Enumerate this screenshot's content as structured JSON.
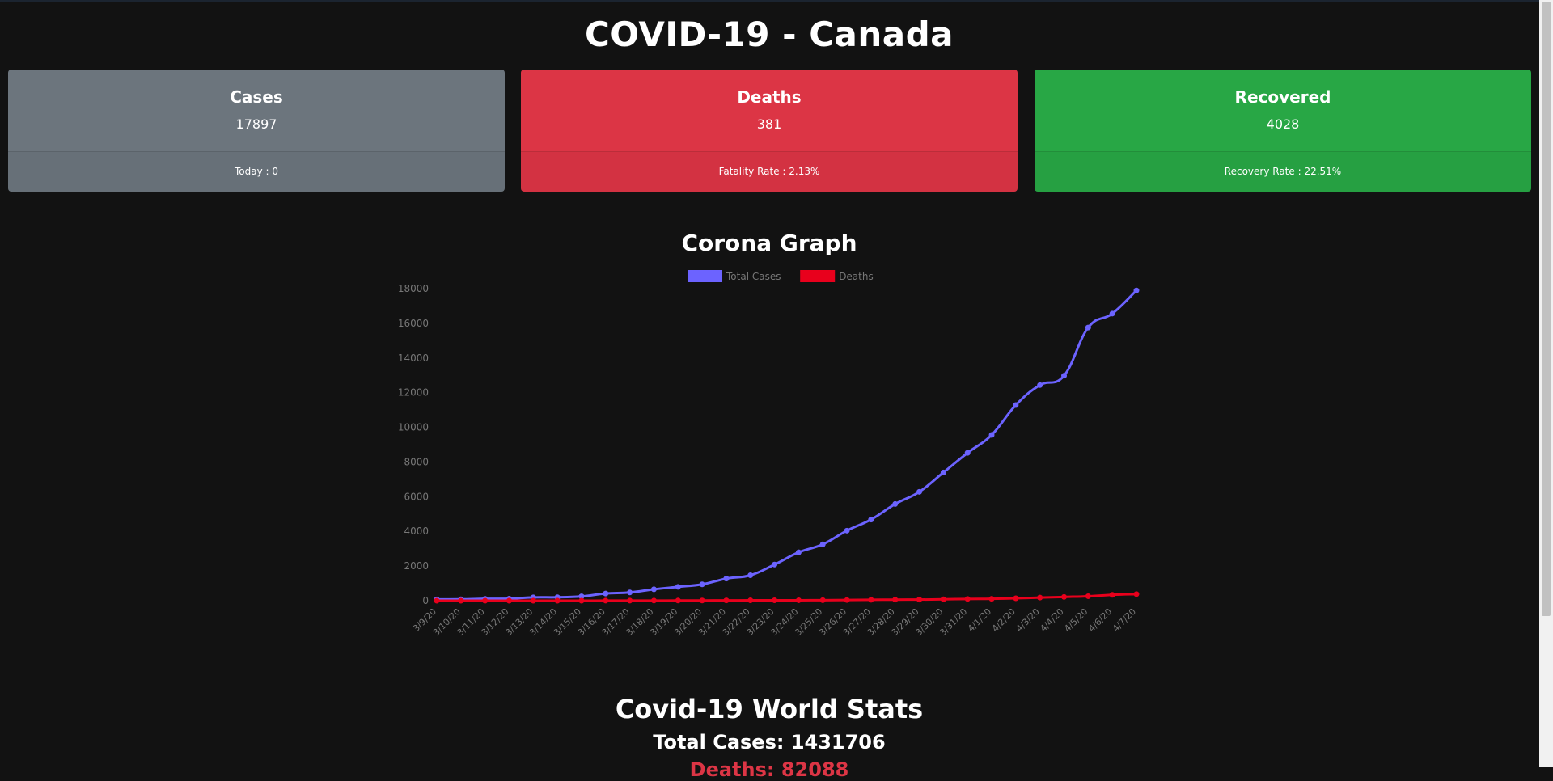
{
  "header": {
    "title": "COVID-19 - Canada"
  },
  "cards": {
    "cases": {
      "title": "Cases",
      "value": "17897",
      "footer": "Today : 0",
      "color": "#6c757d"
    },
    "deaths": {
      "title": "Deaths",
      "value": "381",
      "footer": "Fatality Rate : 2.13%",
      "color": "#dc3545"
    },
    "recovered": {
      "title": "Recovered",
      "value": "4028",
      "footer": "Recovery Rate : 22.51%",
      "color": "#28a745"
    }
  },
  "graph": {
    "title": "Corona Graph"
  },
  "chart_data": {
    "type": "line",
    "title": "",
    "xlabel": "",
    "ylabel": "",
    "ylim": [
      0,
      18000
    ],
    "yticks": [
      0,
      2000,
      4000,
      6000,
      8000,
      10000,
      12000,
      14000,
      16000,
      18000
    ],
    "legend_position": "top",
    "grid": false,
    "categories": [
      "3/9/20",
      "3/10/20",
      "3/11/20",
      "3/12/20",
      "3/13/20",
      "3/14/20",
      "3/15/20",
      "3/16/20",
      "3/17/20",
      "3/18/20",
      "3/19/20",
      "3/20/20",
      "3/21/20",
      "3/22/20",
      "3/23/20",
      "3/24/20",
      "3/25/20",
      "3/26/20",
      "3/27/20",
      "3/28/20",
      "3/29/20",
      "3/30/20",
      "3/31/20",
      "4/1/20",
      "4/2/20",
      "4/3/20",
      "4/4/20",
      "4/5/20",
      "4/6/20",
      "4/7/20"
    ],
    "series": [
      {
        "name": "Total Cases",
        "color": "#6c63ff",
        "values": [
          77,
          79,
          108,
          117,
          193,
          198,
          252,
          415,
          478,
          657,
          800,
          943,
          1277,
          1469,
          2088,
          2790,
          3251,
          4042,
          4682,
          5576,
          6280,
          7398,
          8527,
          9560,
          11284,
          12437,
          12978,
          15756,
          16563,
          17897
        ]
      },
      {
        "name": "Deaths",
        "color": "#e8001c",
        "values": [
          1,
          1,
          1,
          1,
          1,
          1,
          1,
          4,
          5,
          8,
          9,
          12,
          19,
          21,
          25,
          26,
          30,
          39,
          54,
          61,
          64,
          80,
          101,
          109,
          139,
          179,
          218,
          259,
          339,
          381
        ]
      }
    ]
  },
  "world": {
    "title": "Covid-19 World Stats",
    "total_cases": "Total Cases: 1431706",
    "deaths_partial": "Deaths: 82088"
  }
}
